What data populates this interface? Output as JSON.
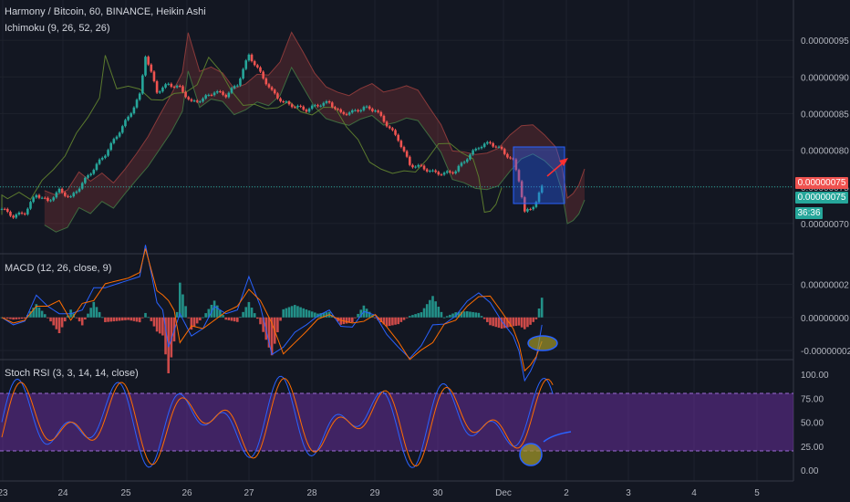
{
  "header": {
    "title": "Harmony / Bitcoin, 60, BINANCE, Heikin Ashi",
    "ichimoku": "Ichimoku (9, 26, 52, 26)"
  },
  "panels": {
    "macd": {
      "label": "MACD (12, 26, close, 9)"
    },
    "stoch": {
      "label": "Stoch RSI (3, 3, 14, 14, close)"
    }
  },
  "price_tags": {
    "last": "0.00000075",
    "close": "0.00000075",
    "countdown": "36:36"
  },
  "colors": {
    "background": "#131722",
    "grid": "#1e222d",
    "up": "#26a69a",
    "down": "#ef5350",
    "macd_line": "#2962ff",
    "signal_line": "#ff6d00",
    "stoch_k": "#2962ff",
    "stoch_d": "#ff6d00",
    "stoch_band": "#4a1f6b",
    "box": "#2962ff",
    "arrow": "#ff3030"
  },
  "chart_data": [
    {
      "type": "candlestick",
      "title": "Harmony / Bitcoin, 60, BINANCE, Heikin Ashi",
      "x_ticks": [
        "23",
        "24",
        "25",
        "26",
        "27",
        "28",
        "29",
        "30",
        "Dec",
        "2",
        "3",
        "4",
        "5"
      ],
      "y_ticks": [
        "0.00000095",
        "0.00000090",
        "0.00000085",
        "0.00000080",
        "0.00000075",
        "0.00000070"
      ],
      "ylim": [
        6.8e-07,
        9.8e-07
      ],
      "last_price": 7.5e-07,
      "price_path": [
        [
          0,
          7.2e-07
        ],
        [
          2,
          7.1e-07
        ],
        [
          4,
          7.15e-07
        ],
        [
          6,
          7.4e-07
        ],
        [
          8,
          7.3e-07
        ],
        [
          10,
          7.45e-07
        ],
        [
          12,
          7.35e-07
        ],
        [
          14,
          7.55e-07
        ],
        [
          16,
          7.75e-07
        ],
        [
          18,
          7.95e-07
        ],
        [
          20,
          8.2e-07
        ],
        [
          22,
          8.45e-07
        ],
        [
          24,
          8.75e-07
        ],
        [
          25,
          9.3e-07
        ],
        [
          27,
          8.8e-07
        ],
        [
          29,
          8.9e-07
        ],
        [
          31,
          8.85e-07
        ],
        [
          33,
          8.65e-07
        ],
        [
          35,
          8.7e-07
        ],
        [
          37,
          8.8e-07
        ],
        [
          39,
          8.75e-07
        ],
        [
          41,
          8.9e-07
        ],
        [
          43,
          9.3e-07
        ],
        [
          45,
          9.05e-07
        ],
        [
          47,
          8.8e-07
        ],
        [
          49,
          8.65e-07
        ],
        [
          51,
          8.6e-07
        ],
        [
          53,
          8.55e-07
        ],
        [
          55,
          8.62e-07
        ],
        [
          57,
          8.65e-07
        ],
        [
          59,
          8.5e-07
        ],
        [
          61,
          8.52e-07
        ],
        [
          63,
          8.58e-07
        ],
        [
          65,
          8.55e-07
        ],
        [
          67,
          8.35e-07
        ],
        [
          69,
          8.15e-07
        ],
        [
          71,
          7.8e-07
        ],
        [
          73,
          7.77e-07
        ],
        [
          75,
          7.7e-07
        ],
        [
          77,
          7.68e-07
        ],
        [
          79,
          7.72e-07
        ],
        [
          81,
          7.9e-07
        ],
        [
          83,
          8.05e-07
        ],
        [
          85,
          8.1e-07
        ],
        [
          87,
          8e-07
        ],
        [
          89,
          7.85e-07
        ],
        [
          90,
          7.6e-07
        ],
        [
          91,
          7.15e-07
        ],
        [
          92,
          7.2e-07
        ],
        [
          93,
          7.3e-07
        ],
        [
          94,
          7.5e-07
        ]
      ],
      "ichimoku_cloud": {
        "span_a": "upper cloud edge",
        "span_b": "lower cloud edge"
      },
      "annotations": [
        "blue rectangle around the late dip",
        "red arrow pointing up-right"
      ]
    },
    {
      "type": "histogram",
      "title": "MACD (12, 26, close, 9)",
      "y_ticks": [
        "0.00000002",
        "0.00000000",
        "-0.00000002"
      ],
      "ylim": [
        -2.5e-08,
        3.8e-08
      ],
      "annotations": [
        "yellow ellipse near the latest histogram low"
      ]
    },
    {
      "type": "line",
      "title": "Stoch RSI (3, 3, 14, 14, close)",
      "y_ticks": [
        "100.00",
        "75.00",
        "50.00",
        "25.00",
        "0.00"
      ],
      "ylim": [
        0,
        100
      ],
      "band": [
        20,
        80
      ],
      "annotations": [
        "yellow circle near the latest oversold low",
        "blue curved mark rising to the right"
      ]
    }
  ]
}
